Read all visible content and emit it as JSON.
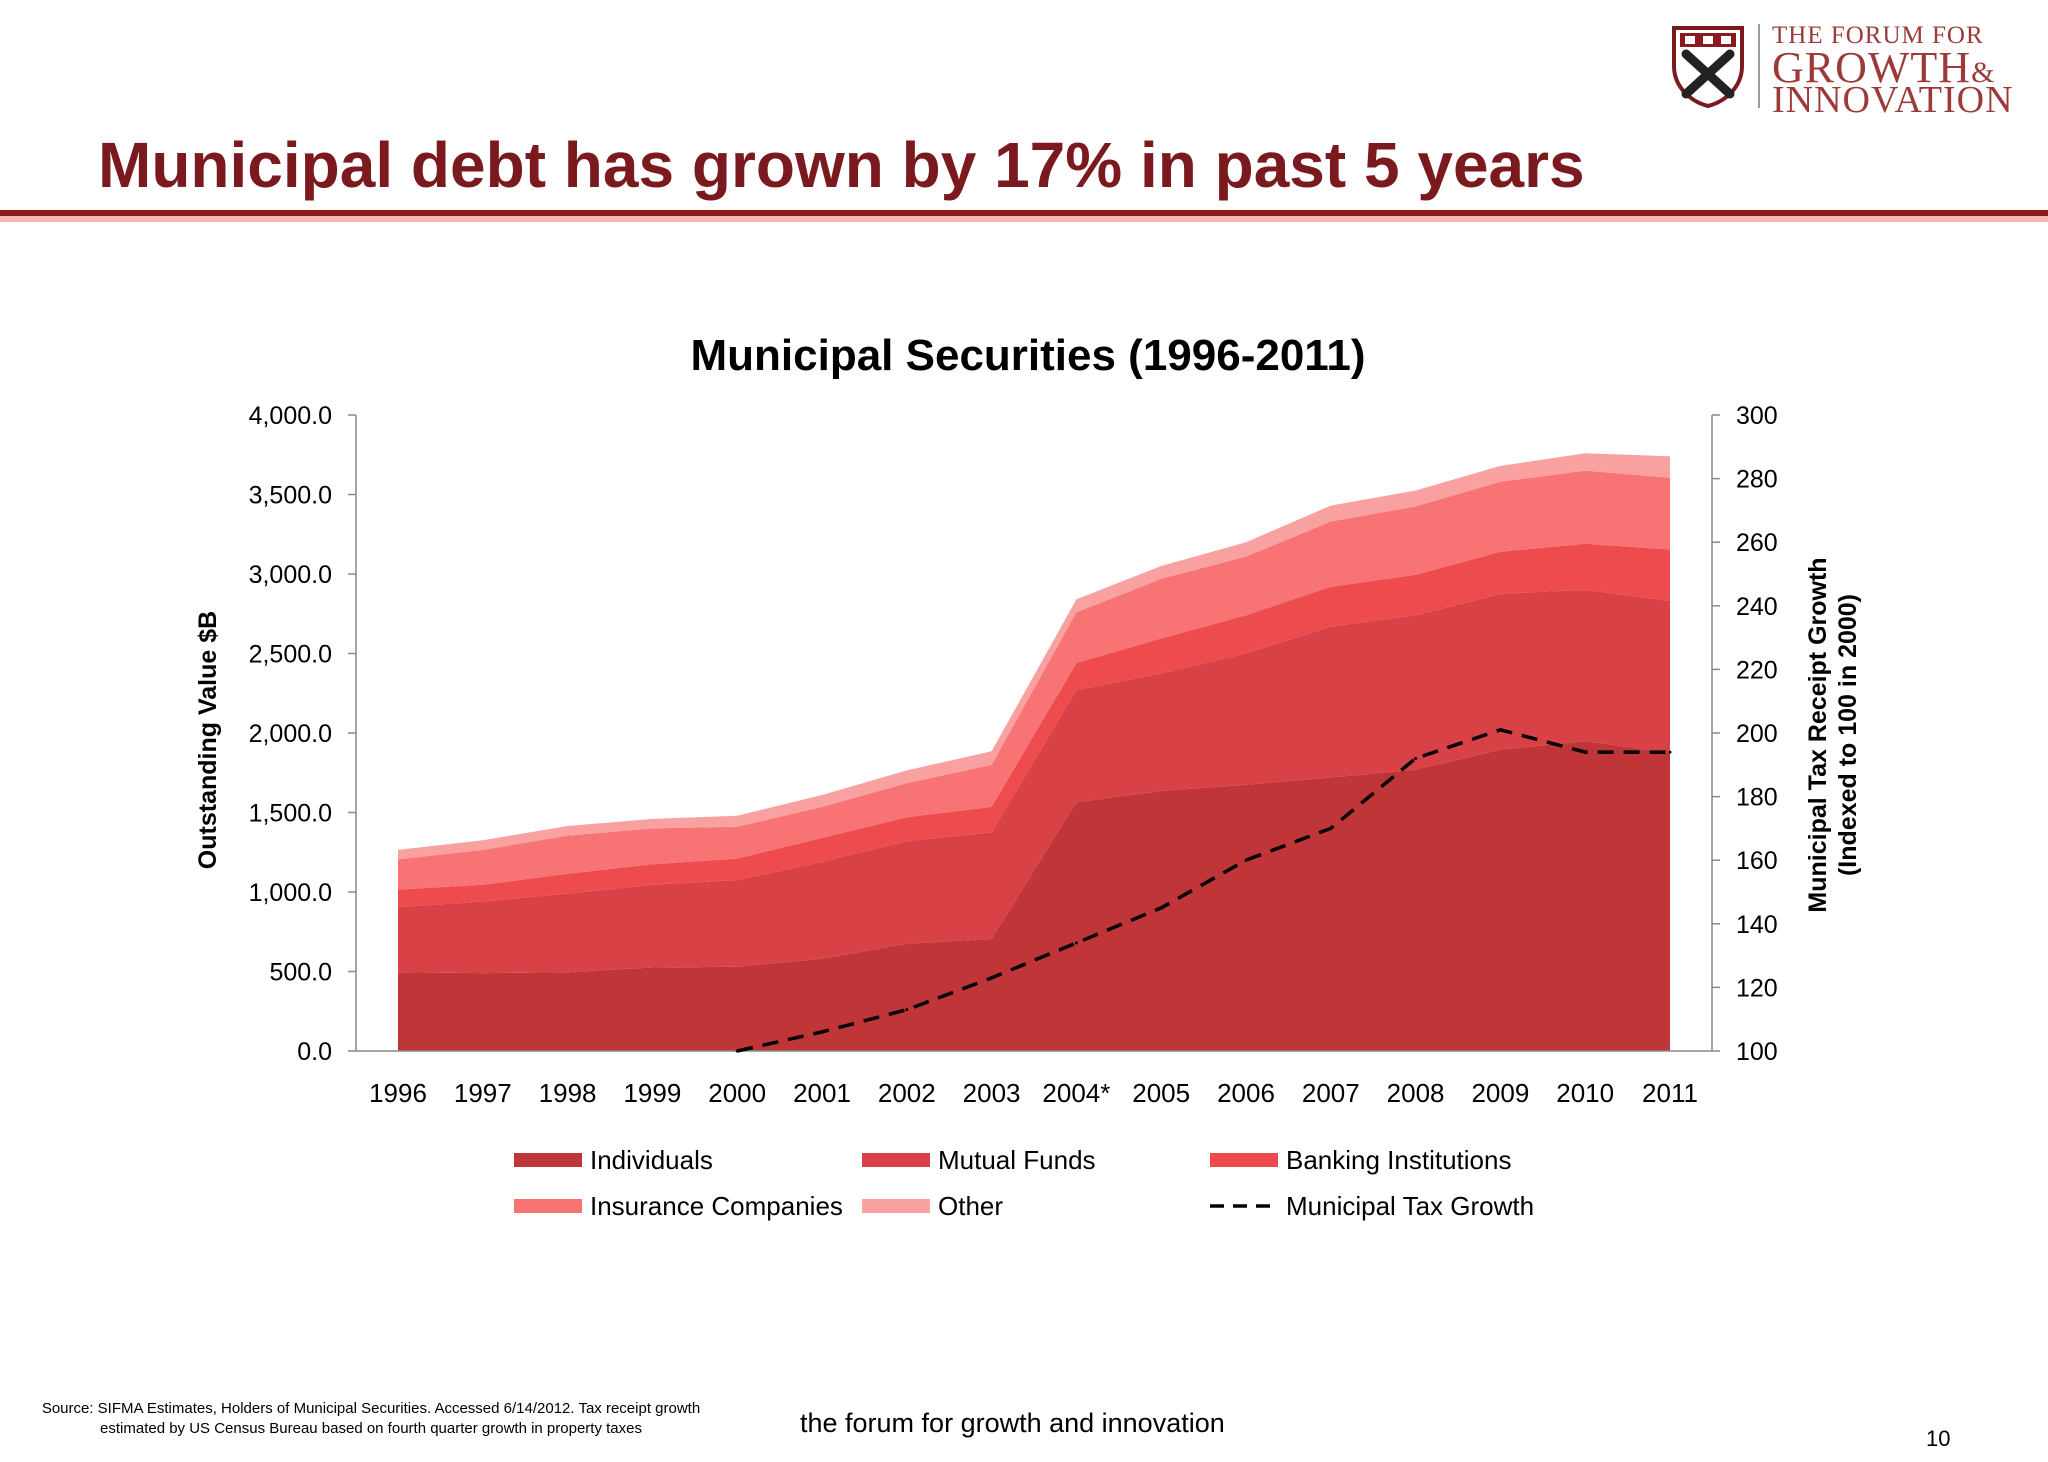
{
  "slide": {
    "title": "Municipal debt has grown by 17% in past 5 years",
    "source_line1": "Source: SIFMA Estimates, Holders of Municipal Securities. Accessed 6/14/2012. Tax receipt growth",
    "source_line2": "estimated by US Census Bureau based on fourth quarter growth in property taxes",
    "footer": "the forum for growth and innovation",
    "page_number": "10"
  },
  "logo": {
    "line1": "THE FORUM FOR",
    "line2": "GROWTH",
    "ampersand": "&",
    "line3": "INNOVATION",
    "icon": "harvard-shield-icon"
  },
  "chart_data": {
    "type": "area",
    "title": "Municipal Securities (1996-2011)",
    "ylabel": "Outstanding Value $B",
    "y2label_line1": "Municipal Tax Receipt Growth",
    "y2label_line2": "(Indexed to 100 in 2000)",
    "categories": [
      "1996",
      "1997",
      "1998",
      "1999",
      "2000",
      "2001",
      "2002",
      "2003",
      "2004*",
      "2005",
      "2006",
      "2007",
      "2008",
      "2009",
      "2010",
      "2011"
    ],
    "ylim": [
      0,
      4000
    ],
    "yticks": [
      "0.0",
      "500.0",
      "1,000.0",
      "1,500.0",
      "2,000.0",
      "2,500.0",
      "3,000.0",
      "3,500.0",
      "4,000.0"
    ],
    "y2lim": [
      100,
      300
    ],
    "y2ticks": [
      "100",
      "120",
      "140",
      "160",
      "180",
      "200",
      "220",
      "240",
      "260",
      "280",
      "300"
    ],
    "stacked": true,
    "series": [
      {
        "name": "Individuals",
        "color": "#bf3538",
        "values": [
          495,
          490,
          495,
          525,
          530,
          580,
          675,
          705,
          1565,
          1635,
          1675,
          1720,
          1770,
          1895,
          1950,
          1875
        ]
      },
      {
        "name": "Mutual Funds",
        "color": "#d84246",
        "values": [
          410,
          450,
          495,
          520,
          545,
          610,
          645,
          670,
          705,
          740,
          825,
          950,
          970,
          980,
          950,
          955
        ]
      },
      {
        "name": "Banking Institutions",
        "color": "#ed4b4e",
        "values": [
          110,
          105,
          125,
          130,
          135,
          150,
          150,
          160,
          170,
          220,
          240,
          250,
          255,
          265,
          290,
          325
        ]
      },
      {
        "name": "Insurance Companies",
        "color": "#f87474",
        "values": [
          190,
          220,
          240,
          225,
          200,
          195,
          215,
          265,
          320,
          375,
          370,
          410,
          430,
          440,
          460,
          450
        ]
      },
      {
        "name": "Other",
        "color": "#f9a1a1",
        "values": [
          60,
          60,
          60,
          60,
          70,
          75,
          80,
          85,
          80,
          80,
          90,
          100,
          100,
          100,
          110,
          135
        ]
      }
    ],
    "line_series": {
      "name": "Municipal Tax Growth",
      "color": "#000000",
      "style": "dashed",
      "axis": "right",
      "values": [
        null,
        null,
        null,
        null,
        100,
        106,
        113,
        123,
        134,
        145,
        160,
        170,
        192,
        201,
        194,
        194
      ]
    },
    "legend": {
      "placement": "bottom",
      "items": [
        "Individuals",
        "Mutual Funds",
        "Banking Institutions",
        "Insurance Companies",
        "Other",
        "Municipal Tax Growth"
      ]
    },
    "grid": false
  }
}
